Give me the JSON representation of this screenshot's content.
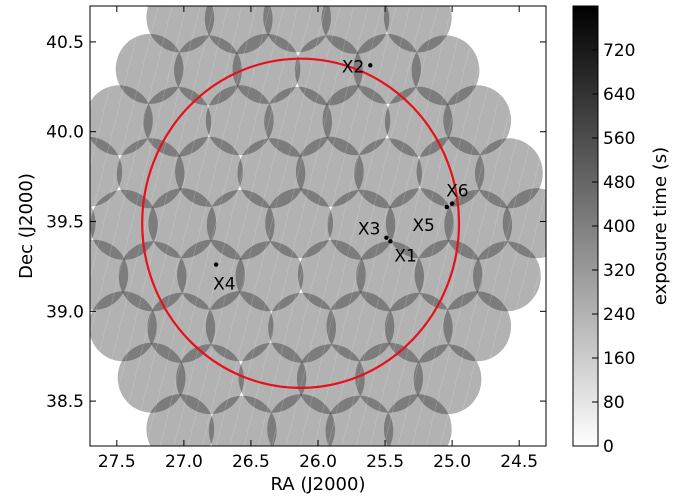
{
  "chart_data": {
    "type": "heatmap",
    "title": "",
    "xlabel": "RA (J2000)",
    "ylabel": "Dec (J2000)",
    "xlim": [
      27.7,
      24.3
    ],
    "ylim": [
      38.25,
      40.7
    ],
    "x_ticks": [
      27.5,
      27.0,
      26.5,
      26.0,
      25.5,
      25.0,
      24.5
    ],
    "x_tick_labels": [
      "27.5",
      "27.0",
      "26.5",
      "26.0",
      "25.5",
      "25.0",
      "24.5"
    ],
    "y_ticks": [
      38.5,
      39.0,
      39.5,
      40.0,
      40.5
    ],
    "y_tick_labels": [
      "38.5",
      "39.0",
      "39.5",
      "40.0",
      "40.5"
    ],
    "colorbar": {
      "label": "exposure time (s)",
      "min": 0,
      "max": 800,
      "ticks": [
        0,
        80,
        160,
        240,
        320,
        400,
        480,
        560,
        640,
        720
      ],
      "tick_labels": [
        "0",
        "80",
        "160",
        "240",
        "320",
        "400",
        "480",
        "560",
        "640",
        "720"
      ],
      "colormap": "gray_r"
    },
    "circle": {
      "center_ra": 26.13,
      "center_dec": 39.49,
      "radius_deg": 0.98,
      "color": "#e8101a"
    },
    "sources": [
      {
        "label": "X1",
        "ra": 25.46,
        "dec": 39.39
      },
      {
        "label": "X2",
        "ra": 25.61,
        "dec": 40.37
      },
      {
        "label": "X3",
        "ra": 25.49,
        "dec": 39.41
      },
      {
        "label": "X4",
        "ra": 26.76,
        "dec": 39.26
      },
      {
        "label": "X5",
        "ra": 25.04,
        "dec": 39.58
      },
      {
        "label": "X6",
        "ra": 25.0,
        "dec": 39.6
      }
    ],
    "fields": {
      "base_exposure_s": 240,
      "overlap_exposure_s": 480,
      "triple_overlap_exposure_s": 720,
      "radius_deg": 0.195
    }
  }
}
